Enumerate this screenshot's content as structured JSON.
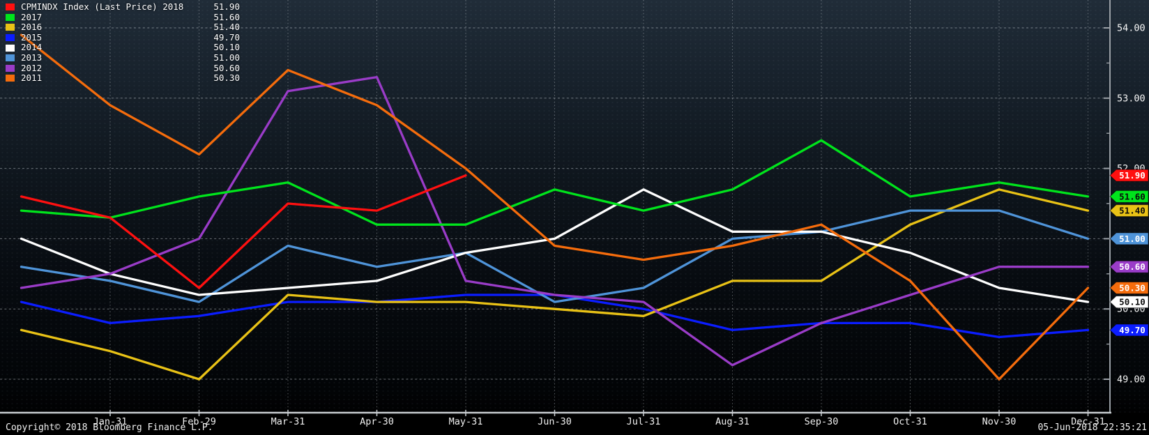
{
  "footer": {
    "copyright": "Copyright© 2018 Bloomberg Finance L.P.",
    "timestamp": "05-Jun-2018 22:35:21"
  },
  "chart_data": {
    "type": "line",
    "title": "CPMINDX Index (Last Price)",
    "instrument": "CPMINDX Index",
    "price_field": "Last Price",
    "legend_position": "top-left",
    "grid": true,
    "x_start_label": "Dec-31 (prior year, unlabeled left edge)",
    "x_tick_labels": [
      "Jan-31",
      "Feb-29",
      "Mar-31",
      "Apr-30",
      "May-31",
      "Jun-30",
      "Jul-31",
      "Aug-31",
      "Sep-30",
      "Oct-31",
      "Nov-30",
      "Dec-31"
    ],
    "y_ticks": [
      54,
      53,
      52,
      51,
      50,
      49
    ],
    "y_tick_labels": [
      "54.00",
      "53.00",
      "52.00",
      "51.00",
      "50.00",
      "49.00"
    ],
    "y_minor_step": 0.5,
    "ylim": [
      48.5,
      54.4
    ],
    "axis_color": "#9aa0a6",
    "grid_color": "#cdd3d8",
    "series": [
      {
        "year": "2018",
        "legend_label": "CPMINDX Index (Last Price) 2018",
        "last_value": "51.90",
        "color": "#ff1010",
        "badge_fg": "#ffffff",
        "z": 8,
        "values": [
          51.6,
          51.3,
          50.3,
          51.5,
          51.4,
          51.9
        ]
      },
      {
        "year": "2017",
        "legend_label": "2017",
        "last_value": "51.60",
        "color": "#00e41c",
        "badge_fg": "#0a0a0a",
        "z": 6,
        "values": [
          51.4,
          51.3,
          51.6,
          51.8,
          51.2,
          51.2,
          51.7,
          51.4,
          51.7,
          52.4,
          51.6,
          51.8,
          51.6
        ]
      },
      {
        "year": "2016",
        "legend_label": "2016",
        "last_value": "51.40",
        "color": "#e9c216",
        "badge_fg": "#0a0a0a",
        "z": 2,
        "values": [
          49.7,
          49.4,
          49.0,
          50.2,
          50.1,
          50.1,
          50.0,
          49.9,
          50.4,
          50.4,
          51.2,
          51.7,
          51.4
        ]
      },
      {
        "year": "2015",
        "legend_label": "2015",
        "last_value": "49.70",
        "color": "#0b1dff",
        "badge_fg": "#ffffff",
        "z": 1,
        "values": [
          50.1,
          49.8,
          49.9,
          50.1,
          50.1,
          50.2,
          50.2,
          50.0,
          49.7,
          49.8,
          49.8,
          49.6,
          49.7
        ]
      },
      {
        "year": "2014",
        "legend_label": "2014",
        "last_value": "50.10",
        "color": "#ffffff",
        "badge_fg": "#0a0a0a",
        "z": 4,
        "values": [
          51.0,
          50.5,
          50.2,
          50.3,
          50.4,
          50.8,
          51.0,
          51.7,
          51.1,
          51.1,
          50.8,
          50.3,
          50.1
        ]
      },
      {
        "year": "2013",
        "legend_label": "2013",
        "last_value": "51.00",
        "color": "#4f94d9",
        "badge_fg": "#ffffff",
        "z": 3,
        "values": [
          50.6,
          50.4,
          50.1,
          50.9,
          50.6,
          50.8,
          50.1,
          50.3,
          51.0,
          51.1,
          51.4,
          51.4,
          51.0
        ]
      },
      {
        "year": "2012",
        "legend_label": "2012",
        "last_value": "50.60",
        "color": "#9a3cc8",
        "badge_fg": "#ffffff",
        "z": 5,
        "values": [
          50.3,
          50.5,
          51.0,
          53.1,
          53.3,
          50.4,
          50.2,
          50.1,
          49.2,
          49.8,
          50.2,
          50.6,
          50.6
        ]
      },
      {
        "year": "2011",
        "legend_label": "2011",
        "last_value": "50.30",
        "color": "#f56c0c",
        "badge_fg": "#ffffff",
        "z": 7,
        "values": [
          53.9,
          52.9,
          52.2,
          53.4,
          52.9,
          52.0,
          50.9,
          50.7,
          50.9,
          51.2,
          50.4,
          49.0,
          50.3
        ]
      }
    ]
  }
}
